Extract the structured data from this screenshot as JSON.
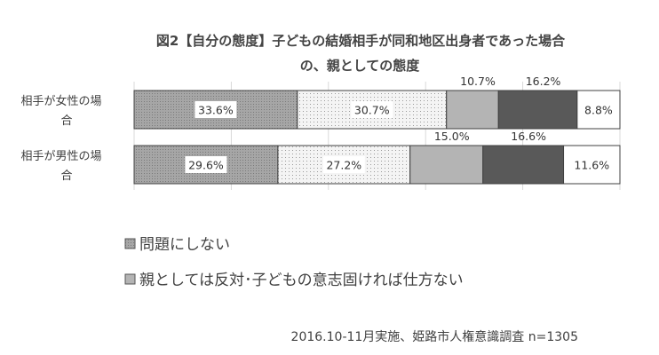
{
  "chart_data": {
    "type": "bar",
    "orientation": "horizontal",
    "stacked": true,
    "title_lines": [
      "図2【自分の態度】子どもの結婚相手が同和地区出身者であった場合",
      "の、親としての態度"
    ],
    "categories": [
      [
        "相手が女性の場",
        "合"
      ],
      [
        "相手が男性の場",
        "合"
      ]
    ],
    "series": [
      {
        "values": [
          33.6,
          29.6
        ],
        "fill": "#a6a6a6",
        "pattern": "dense-dots"
      },
      {
        "values": [
          30.7,
          27.2
        ],
        "fill": "#f2f2f2",
        "pattern": "sparse-dots"
      },
      {
        "values": [
          10.7,
          15.0
        ],
        "fill": "#b4b4b4",
        "pattern": "solid"
      },
      {
        "values": [
          16.2,
          16.6
        ],
        "fill": "#595959",
        "pattern": "solid"
      },
      {
        "values": [
          8.8,
          11.6
        ],
        "fill": "#ffffff",
        "pattern": "solid"
      }
    ],
    "data_labels": [
      [
        "33.6%",
        "29.6%"
      ],
      [
        "30.7%",
        "27.2%"
      ],
      [
        "10.7%",
        "15.0%"
      ],
      [
        "16.2%",
        "16.6%"
      ],
      [
        "8.8%",
        "11.6%"
      ]
    ],
    "xlim": [
      0,
      100
    ],
    "grid": true,
    "legend": {
      "placement": "bottom",
      "entries": [
        {
          "label": "問題にしない",
          "series_index": 0
        },
        {
          "label": "親としては反対･子どもの意志固ければ仕方ない",
          "series_index": 2
        }
      ]
    },
    "footer": "2016.10-11月実施、姫路市人権意識調査 n=1305"
  }
}
